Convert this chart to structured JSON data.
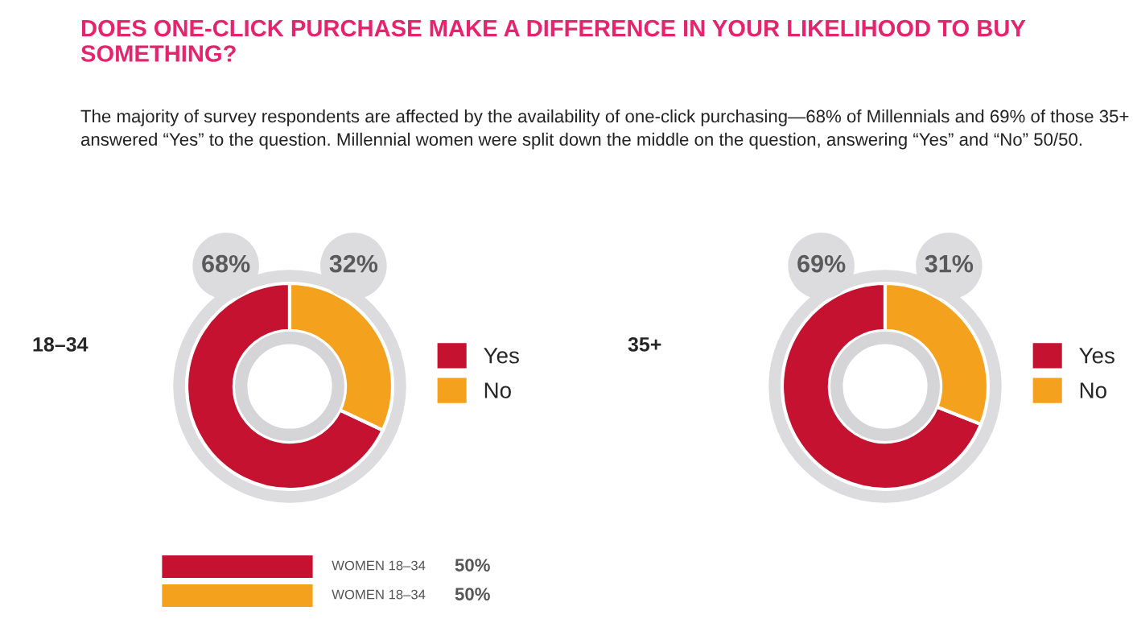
{
  "chart_data": [
    {
      "type": "donut",
      "title": "DOES ONE-CLICK PURCHASE MAKE A DIFFERENCE IN YOUR LIKELIHOOD TO BUY SOMETHING?",
      "subtitle": "The majority of survey respondents are affected by the availability of one-click purchasing—68% of Millennials and 69% of those 35+ answered “Yes” to the question. Millennial women were split down the middle on the question, answering “Yes” and “No” 50/50.",
      "annotations": [
        "18–34"
      ],
      "categories": [
        "Yes",
        "No"
      ],
      "values": [
        68,
        32
      ],
      "colors": [
        "#c41230",
        "#f4a11d"
      ],
      "value_labels": [
        "68%",
        "32%"
      ],
      "legend": "right"
    },
    {
      "type": "donut",
      "annotations": [
        "35+"
      ],
      "categories": [
        "Yes",
        "No"
      ],
      "values": [
        69,
        31
      ],
      "colors": [
        "#c41230",
        "#f4a11d"
      ],
      "value_labels": [
        "69%",
        "31%"
      ],
      "legend": "right"
    },
    {
      "type": "bar",
      "orientation": "horizontal",
      "categories": [
        "WOMEN 18–34",
        "WOMEN 18–34"
      ],
      "values": [
        50,
        50
      ],
      "colors": [
        "#c41230",
        "#f4a11d"
      ],
      "value_labels": [
        "50%",
        "50%"
      ],
      "tick_labels": false
    }
  ]
}
